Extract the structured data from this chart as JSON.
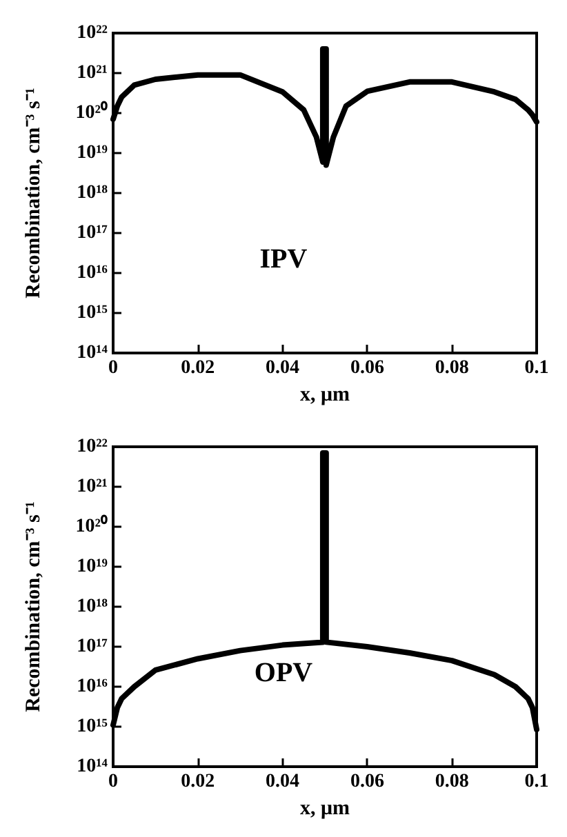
{
  "chart_data": [
    {
      "type": "line",
      "xlabel": "x, μm",
      "ylabel": "Recombination, cm⁻³ s⁻¹",
      "annotations": [
        "IPV"
      ],
      "log": "y",
      "grid": false,
      "marker": "none",
      "line_style": "solid",
      "xlim": [
        0,
        0.1
      ],
      "xticks": [
        0,
        0.02,
        0.04,
        0.06,
        0.08,
        0.1
      ],
      "ylim": [
        100000000000000.0,
        1e+22
      ],
      "yticks": [
        {
          "value": 100000000000000.0,
          "label": "10¹⁴"
        },
        {
          "value": 1000000000000000.0,
          "label": "10¹⁵"
        },
        {
          "value": 1e+16,
          "label": "10¹⁶"
        },
        {
          "value": 1e+17,
          "label": "10¹⁷"
        },
        {
          "value": 1e+18,
          "label": "10¹⁸"
        },
        {
          "value": 1e+19,
          "label": "10¹⁹"
        },
        {
          "value": 1e+20,
          "label": "10²⁰"
        },
        {
          "value": 1e+21,
          "label": "10²¹"
        },
        {
          "value": 1e+22,
          "label": "10²²"
        }
      ],
      "series": [
        {
          "color": "#000000",
          "x": [
            0,
            0.001,
            0.002,
            0.005,
            0.01,
            0.02,
            0.03,
            0.04,
            0.045,
            0.048,
            0.0495,
            0.0495,
            0.0503,
            0.0503,
            0.052,
            0.055,
            0.06,
            0.07,
            0.08,
            0.09,
            0.095,
            0.098,
            0.099,
            0.1
          ],
          "values": [
            7e+19,
            1.5e+20,
            2.5e+20,
            5e+20,
            7e+20,
            9e+20,
            9e+20,
            3.4e+20,
            1.2e+20,
            2.5e+19,
            6e+18,
            4e+21,
            4e+21,
            5e+18,
            2.5e+19,
            1.5e+20,
            3.5e+20,
            6e+20,
            6e+20,
            3.4e+20,
            2.2e+20,
            1.2e+20,
            9e+19,
            6e+19
          ]
        }
      ]
    },
    {
      "type": "line",
      "xlabel": "x, μm",
      "ylabel": "Recombination, cm⁻³ s⁻¹",
      "annotations": [
        "OPV"
      ],
      "log": "y",
      "grid": false,
      "marker": "none",
      "line_style": "solid",
      "xlim": [
        0,
        0.1
      ],
      "xticks": [
        0,
        0.02,
        0.04,
        0.06,
        0.08,
        0.1
      ],
      "ylim": [
        100000000000000.0,
        1e+22
      ],
      "yticks": [
        {
          "value": 100000000000000.0,
          "label": "10¹⁴"
        },
        {
          "value": 1000000000000000.0,
          "label": "10¹⁵"
        },
        {
          "value": 1e+16,
          "label": "10¹⁶"
        },
        {
          "value": 1e+17,
          "label": "10¹⁷"
        },
        {
          "value": 1e+18,
          "label": "10¹⁸"
        },
        {
          "value": 1e+19,
          "label": "10¹⁹"
        },
        {
          "value": 1e+20,
          "label": "10²⁰"
        },
        {
          "value": 1e+21,
          "label": "10²¹"
        },
        {
          "value": 1e+22,
          "label": "10²²"
        }
      ],
      "series": [
        {
          "color": "#000000",
          "x": [
            0,
            0.001,
            0.002,
            0.005,
            0.01,
            0.02,
            0.03,
            0.04,
            0.0495,
            0.0495,
            0.0503,
            0.0503,
            0.06,
            0.07,
            0.08,
            0.09,
            0.095,
            0.098,
            0.099,
            0.1
          ],
          "values": [
            1100000000000000.0,
            3000000000000000.0,
            5000000000000000.0,
            1e+16,
            2.6e+16,
            5e+16,
            8e+16,
            1.1e+17,
            1.3e+17,
            7e+21,
            7e+21,
            1.3e+17,
            1e+17,
            7e+16,
            4.5e+16,
            2e+16,
            1e+16,
            5000000000000000.0,
            3000000000000000.0,
            850000000000000.0
          ]
        }
      ]
    }
  ]
}
